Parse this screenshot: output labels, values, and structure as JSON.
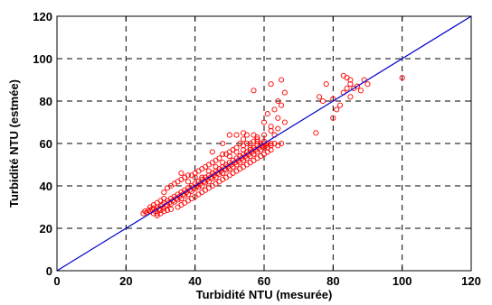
{
  "chart_data": {
    "type": "scatter",
    "title": "",
    "xlabel": "Turbidité NTU (mesurée)",
    "ylabel": "Turbidité NTU (estmée)",
    "xlim": [
      0,
      120
    ],
    "ylim": [
      0,
      120
    ],
    "xticks": [
      "0",
      "20",
      "40",
      "60",
      "80",
      "100",
      "120"
    ],
    "yticks": [
      "0",
      "20",
      "40",
      "60",
      "80",
      "100",
      "120"
    ],
    "grid": true,
    "marker_color": "#ff0000",
    "line_color": "#0000cc",
    "reference_line": {
      "x": [
        0,
        120
      ],
      "y": [
        0,
        120
      ]
    },
    "series": [
      {
        "marker": "circle",
        "points": [
          [
            25,
            27
          ],
          [
            25.5,
            28
          ],
          [
            26,
            27.5
          ],
          [
            26.5,
            28.5
          ],
          [
            27,
            28
          ],
          [
            27.5,
            29
          ],
          [
            28,
            27
          ],
          [
            28,
            29.5
          ],
          [
            28.5,
            28
          ],
          [
            29,
            30
          ],
          [
            29,
            27
          ],
          [
            29.5,
            29
          ],
          [
            30,
            30.5
          ],
          [
            30,
            28.5
          ],
          [
            30.5,
            31
          ],
          [
            31,
            29.5
          ],
          [
            31,
            32
          ],
          [
            31.5,
            30.5
          ],
          [
            32,
            31
          ],
          [
            32,
            33
          ],
          [
            32.5,
            32
          ],
          [
            33,
            31.5
          ],
          [
            33,
            34
          ],
          [
            33.5,
            33
          ],
          [
            34,
            32.5
          ],
          [
            34,
            35
          ],
          [
            34.5,
            34
          ],
          [
            35,
            33.5
          ],
          [
            35,
            36
          ],
          [
            35.5,
            35
          ],
          [
            36,
            34
          ],
          [
            36,
            37
          ],
          [
            36.5,
            36
          ],
          [
            37,
            35.5
          ],
          [
            37,
            38
          ],
          [
            37.5,
            37
          ],
          [
            38,
            36
          ],
          [
            38,
            39
          ],
          [
            38.5,
            38
          ],
          [
            39,
            37.5
          ],
          [
            39,
            40
          ],
          [
            39.5,
            39
          ],
          [
            40,
            38.5
          ],
          [
            40,
            41
          ],
          [
            40.5,
            40
          ],
          [
            41,
            39.5
          ],
          [
            41,
            42
          ],
          [
            41.5,
            41
          ],
          [
            42,
            40
          ],
          [
            42,
            43
          ],
          [
            42.5,
            42
          ],
          [
            43,
            41.5
          ],
          [
            43,
            44
          ],
          [
            43.5,
            43
          ],
          [
            44,
            42
          ],
          [
            44,
            45
          ],
          [
            44.5,
            44
          ],
          [
            45,
            43.5
          ],
          [
            45,
            46
          ],
          [
            45.5,
            45
          ],
          [
            46,
            44
          ],
          [
            46,
            47
          ],
          [
            46.5,
            46
          ],
          [
            47,
            45.5
          ],
          [
            47,
            48
          ],
          [
            47.5,
            47
          ],
          [
            48,
            46
          ],
          [
            48,
            49
          ],
          [
            48.5,
            48
          ],
          [
            49,
            47.5
          ],
          [
            49,
            50
          ],
          [
            49.5,
            49
          ],
          [
            50,
            48
          ],
          [
            50,
            51
          ],
          [
            50.5,
            50
          ],
          [
            51,
            49
          ],
          [
            51,
            52
          ],
          [
            51.5,
            51
          ],
          [
            52,
            50
          ],
          [
            52,
            53
          ],
          [
            52.5,
            52
          ],
          [
            53,
            51
          ],
          [
            53,
            54
          ],
          [
            53.5,
            53
          ],
          [
            54,
            52
          ],
          [
            54,
            55
          ],
          [
            54.5,
            54
          ],
          [
            55,
            53
          ],
          [
            55,
            56
          ],
          [
            55.5,
            55
          ],
          [
            56,
            54
          ],
          [
            56,
            57
          ],
          [
            56.5,
            56
          ],
          [
            57,
            55
          ],
          [
            57,
            58
          ],
          [
            57.5,
            57
          ],
          [
            58,
            56
          ],
          [
            58,
            59
          ],
          [
            58.5,
            58
          ],
          [
            59,
            57
          ],
          [
            59,
            60
          ],
          [
            59.5,
            59
          ],
          [
            60,
            58
          ],
          [
            60,
            60
          ],
          [
            60.5,
            59
          ],
          [
            61,
            58
          ],
          [
            61,
            60
          ],
          [
            62,
            59
          ],
          [
            62,
            60
          ],
          [
            63,
            60
          ],
          [
            64,
            59
          ],
          [
            65,
            60
          ],
          [
            56,
            60
          ],
          [
            57,
            61
          ],
          [
            58,
            62
          ],
          [
            55,
            60
          ],
          [
            54,
            59
          ],
          [
            53,
            60
          ],
          [
            52,
            58
          ],
          [
            51,
            57
          ],
          [
            50,
            56
          ],
          [
            49,
            55
          ],
          [
            48,
            55
          ],
          [
            47,
            53
          ],
          [
            46,
            52
          ],
          [
            45,
            51
          ],
          [
            44,
            50
          ],
          [
            43,
            49
          ],
          [
            42,
            48
          ],
          [
            41,
            47
          ],
          [
            40,
            46
          ],
          [
            39,
            45
          ],
          [
            38,
            45
          ],
          [
            37,
            44
          ],
          [
            36,
            43
          ],
          [
            35,
            42
          ],
          [
            34,
            41
          ],
          [
            33,
            40
          ],
          [
            32,
            39
          ],
          [
            31,
            37
          ],
          [
            35,
            30
          ],
          [
            36,
            31
          ],
          [
            37,
            32
          ],
          [
            38,
            33
          ],
          [
            39,
            34
          ],
          [
            40,
            35
          ],
          [
            41,
            36
          ],
          [
            42,
            37
          ],
          [
            43,
            38
          ],
          [
            44,
            39
          ],
          [
            45,
            40
          ],
          [
            46,
            41
          ],
          [
            47,
            42
          ],
          [
            48,
            43
          ],
          [
            49,
            44
          ],
          [
            50,
            45
          ],
          [
            51,
            46
          ],
          [
            52,
            47
          ],
          [
            53,
            48
          ],
          [
            54,
            49
          ],
          [
            55,
            50
          ],
          [
            56,
            51
          ],
          [
            57,
            52
          ],
          [
            58,
            53
          ],
          [
            59,
            54
          ],
          [
            60,
            55
          ],
          [
            61,
            56
          ],
          [
            62,
            57
          ],
          [
            29,
            26
          ],
          [
            30,
            27
          ],
          [
            31,
            28
          ],
          [
            32,
            28.5
          ],
          [
            33,
            29
          ],
          [
            27,
            30
          ],
          [
            28,
            31
          ],
          [
            29,
            32
          ],
          [
            30,
            33
          ],
          [
            31,
            34
          ],
          [
            36,
            46
          ],
          [
            38,
            42
          ],
          [
            40,
            44
          ],
          [
            42,
            44
          ],
          [
            44,
            47
          ],
          [
            46,
            49
          ],
          [
            48,
            51
          ],
          [
            50,
            54
          ],
          [
            52,
            56
          ],
          [
            54,
            57
          ],
          [
            56,
            58
          ],
          [
            58,
            61
          ],
          [
            60,
            61
          ],
          [
            45,
            56
          ],
          [
            48,
            60
          ],
          [
            50,
            64
          ],
          [
            52,
            64
          ],
          [
            54,
            65
          ],
          [
            55,
            64
          ],
          [
            57,
            64
          ],
          [
            60,
            64
          ],
          [
            62,
            66
          ],
          [
            63,
            64
          ],
          [
            64,
            67
          ],
          [
            60,
            70
          ],
          [
            61,
            74
          ],
          [
            63,
            76
          ],
          [
            62,
            68
          ],
          [
            64,
            72
          ],
          [
            65,
            78
          ],
          [
            66,
            84
          ],
          [
            65,
            90
          ],
          [
            57,
            85
          ],
          [
            62,
            88
          ],
          [
            64,
            80
          ],
          [
            66,
            70
          ],
          [
            58,
            63
          ],
          [
            54,
            62
          ],
          [
            75,
            65
          ],
          [
            77,
            80
          ],
          [
            76,
            82
          ],
          [
            80,
            72
          ],
          [
            81,
            76
          ],
          [
            82,
            78
          ],
          [
            83,
            84
          ],
          [
            84,
            86
          ],
          [
            83,
            92
          ],
          [
            84,
            91
          ],
          [
            85,
            90
          ],
          [
            85,
            88
          ],
          [
            86,
            86
          ],
          [
            87,
            87
          ],
          [
            88,
            85
          ],
          [
            89,
            90
          ],
          [
            85,
            82
          ],
          [
            90,
            88
          ],
          [
            100,
            91
          ],
          [
            78,
            88
          ],
          [
            80,
            81
          ]
        ]
      }
    ]
  }
}
